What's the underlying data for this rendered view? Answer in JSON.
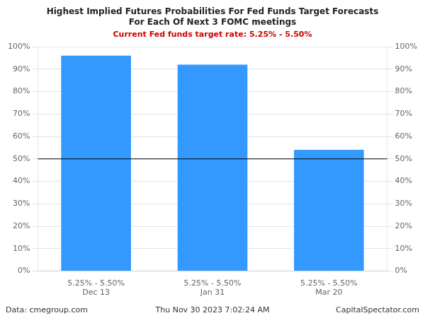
{
  "chart_data": {
    "type": "bar",
    "title": "Highest Implied Futures Probabilities For Fed Funds Target Forecasts\nFor Each Of Next 3 FOMC meetings",
    "subtitle": "Current Fed funds target rate: 5.25% - 5.50%",
    "categories": [
      "5.25% - 5.50%\nDec 13",
      "5.25% - 5.50%\nJan 31",
      "5.25% - 5.50%\nMar 20"
    ],
    "values": [
      96,
      92,
      54
    ],
    "color": "#3399FF",
    "ylim": [
      0,
      100
    ],
    "yticks": [
      {
        "value": 0,
        "label": "0%"
      },
      {
        "value": 10,
        "label": "10%"
      },
      {
        "value": 20,
        "label": "20%"
      },
      {
        "value": 30,
        "label": "30%"
      },
      {
        "value": 40,
        "label": "40%"
      },
      {
        "value": 50,
        "label": "50%"
      },
      {
        "value": 60,
        "label": "60%"
      },
      {
        "value": 70,
        "label": "70%"
      },
      {
        "value": 80,
        "label": "80%"
      },
      {
        "value": 90,
        "label": "90%"
      },
      {
        "value": 100,
        "label": "100%"
      }
    ],
    "y2lim": [
      0,
      100
    ],
    "y2ticks": [
      {
        "value": 0,
        "label": "0%"
      },
      {
        "value": 10,
        "label": "10%"
      },
      {
        "value": 20,
        "label": "20%"
      },
      {
        "value": 30,
        "label": "30%"
      },
      {
        "value": 40,
        "label": "40%"
      },
      {
        "value": 50,
        "label": "50%"
      },
      {
        "value": 60,
        "label": "60%"
      },
      {
        "value": 70,
        "label": "70%"
      },
      {
        "value": 80,
        "label": "80%"
      },
      {
        "value": 90,
        "label": "90%"
      },
      {
        "value": 100,
        "label": "100%"
      }
    ],
    "hline": {
      "value": 50,
      "color": "#000000"
    },
    "grid": true,
    "annotations": [
      "Data: cmegroup.com",
      "Thu Nov 30 2023 7:02:24 AM",
      "CapitalSpectator.com"
    ]
  }
}
